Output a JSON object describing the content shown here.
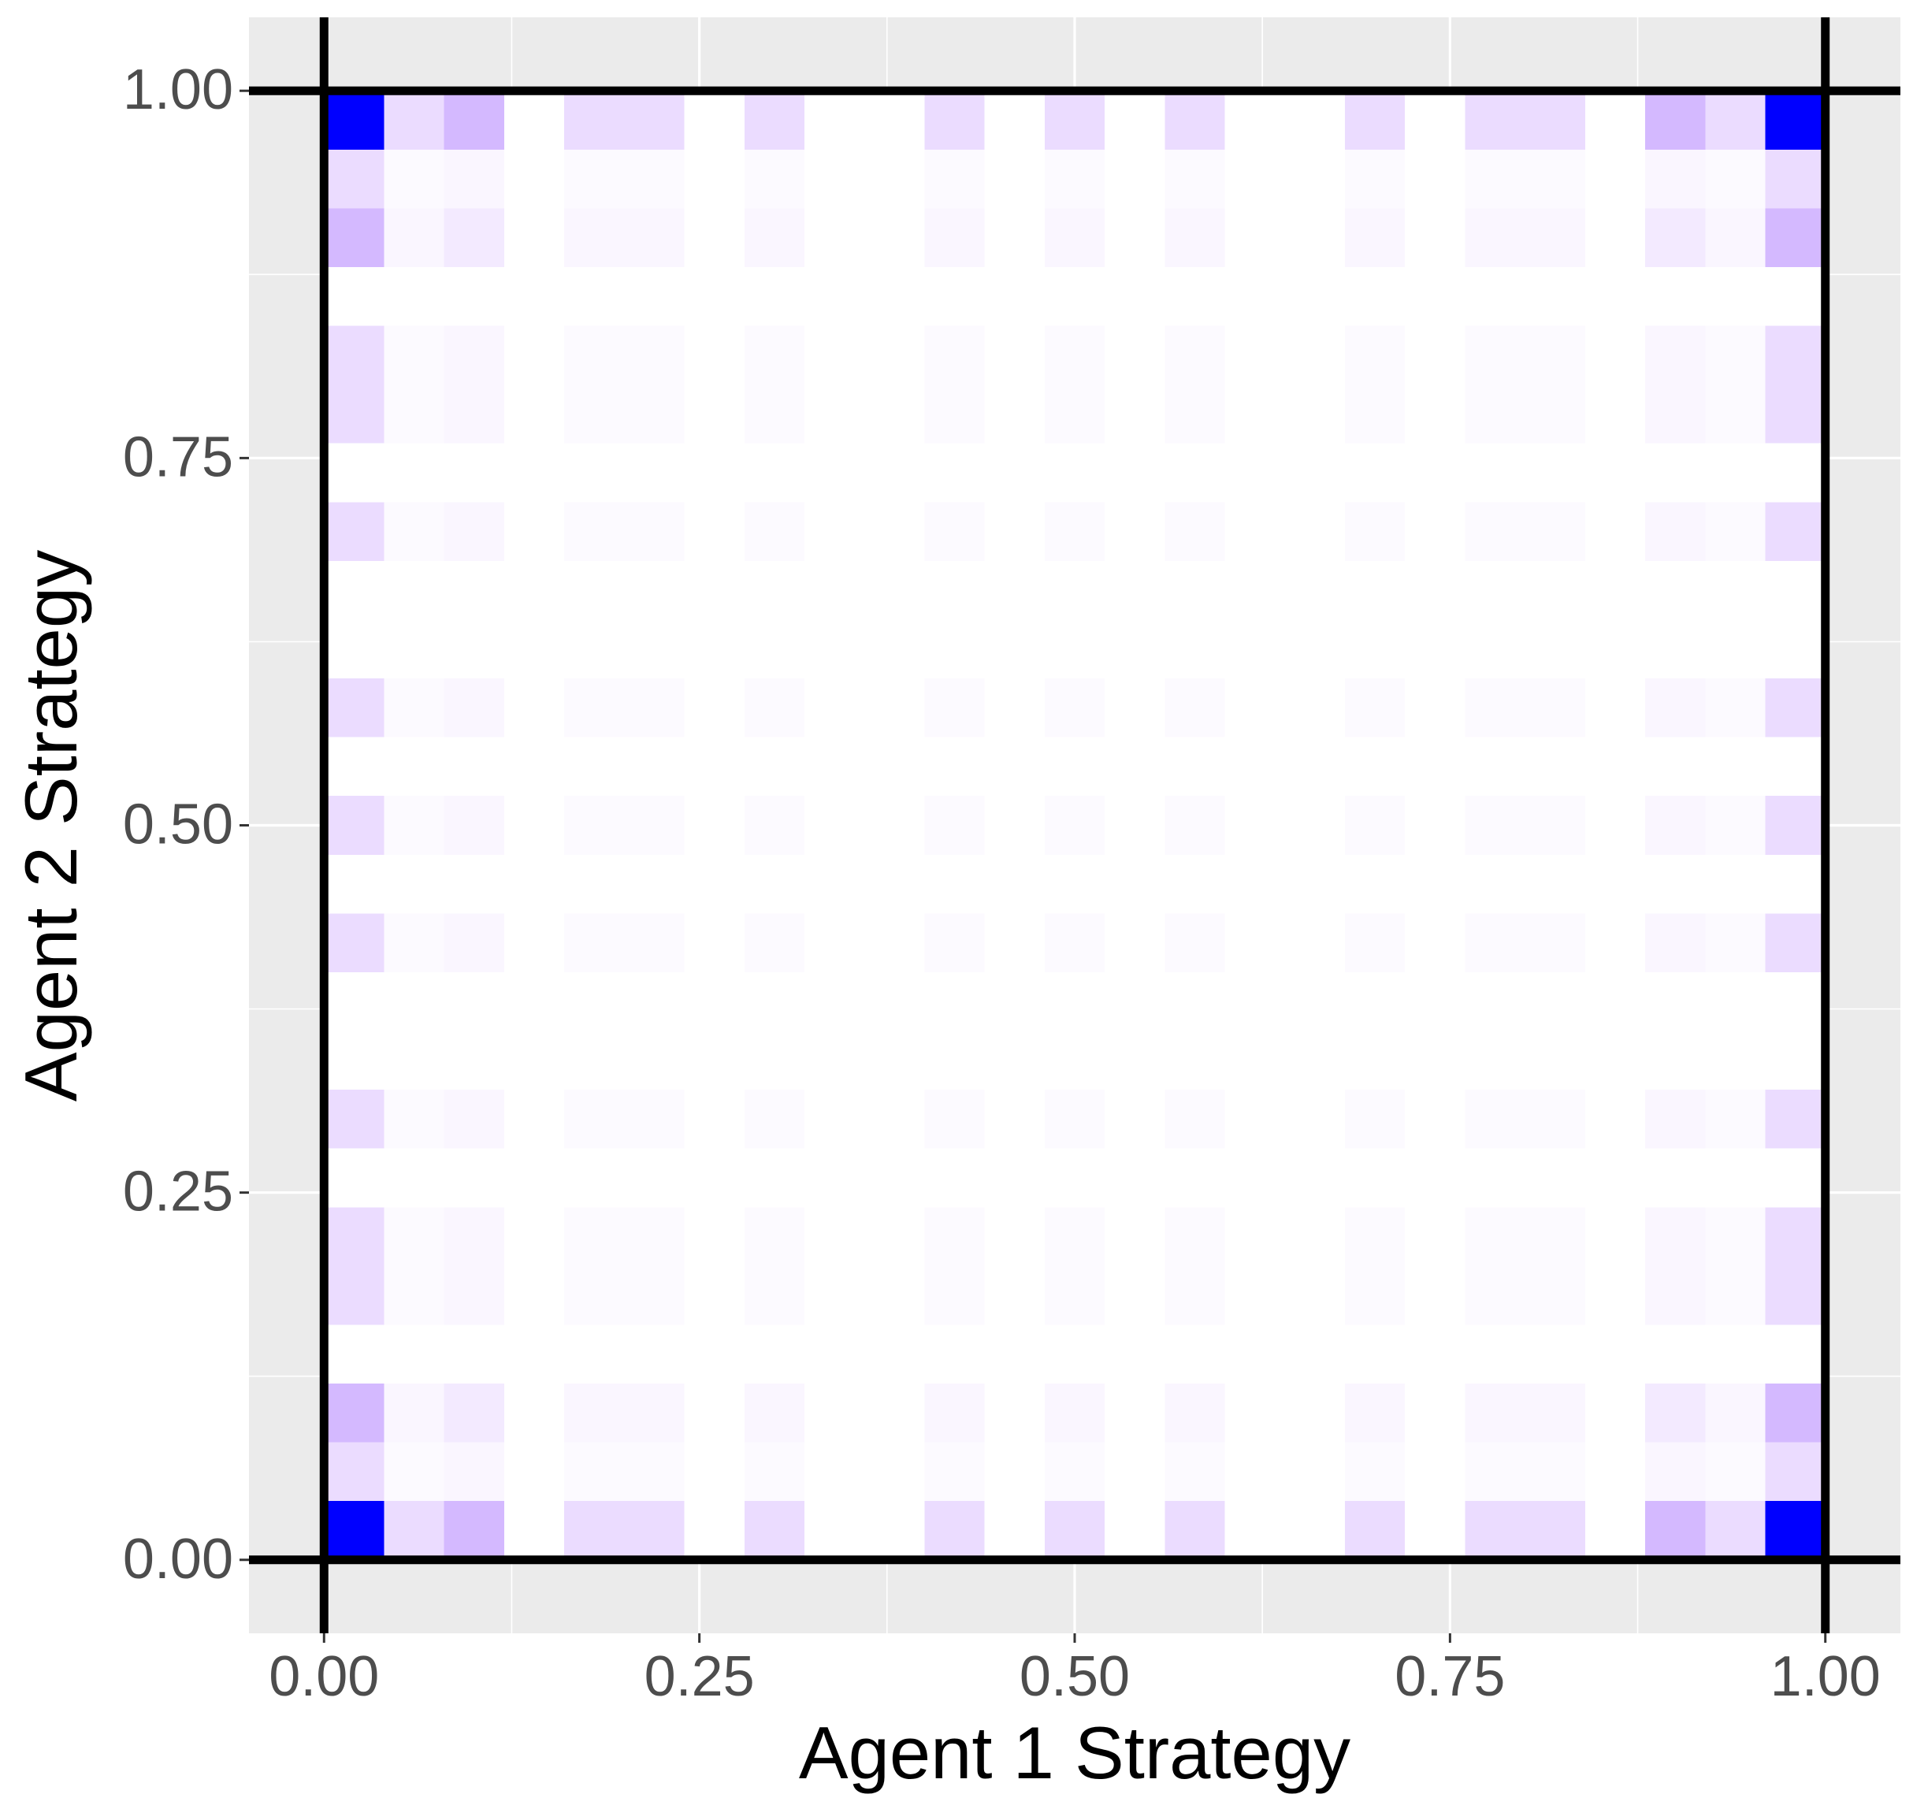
{
  "chart_data": {
    "type": "heatmap",
    "x_label": "Agent 1 Strategy",
    "y_label": "Agent 2 Strategy",
    "xbins": [
      0,
      0.04,
      0.08,
      0.12,
      0.16,
      0.2,
      0.24,
      0.28,
      0.32,
      0.36,
      0.4,
      0.44,
      0.48,
      0.52,
      0.56,
      0.6,
      0.64,
      0.68,
      0.72,
      0.76,
      0.8,
      0.84,
      0.88,
      0.92,
      0.96,
      1
    ],
    "ybins": [
      0,
      0.04,
      0.08,
      0.12,
      0.16,
      0.2,
      0.24,
      0.28,
      0.32,
      0.36,
      0.4,
      0.44,
      0.48,
      0.52,
      0.56,
      0.6,
      0.64,
      0.68,
      0.72,
      0.76,
      0.8,
      0.84,
      0.88,
      0.92,
      0.96,
      1
    ],
    "values": [
      [
        100,
        15,
        30,
        0,
        15,
        15,
        0,
        15,
        0,
        0,
        15,
        0,
        15,
        0,
        15,
        0,
        0,
        15,
        0,
        15,
        15,
        0,
        30,
        15,
        100
      ],
      [
        15,
        2,
        4,
        0,
        2,
        2,
        0,
        2,
        0,
        0,
        2,
        0,
        2,
        0,
        2,
        0,
        0,
        2,
        0,
        2,
        2,
        0,
        4,
        2,
        15
      ],
      [
        30,
        4,
        9,
        0,
        4,
        4,
        0,
        4,
        0,
        0,
        4,
        0,
        4,
        0,
        4,
        0,
        0,
        4,
        0,
        4,
        4,
        0,
        9,
        4,
        30
      ],
      [
        0,
        0,
        0,
        0,
        0,
        0,
        0,
        0,
        0,
        0,
        0,
        0,
        0,
        0,
        0,
        0,
        0,
        0,
        0,
        0,
        0,
        0,
        0,
        0,
        0
      ],
      [
        15,
        2,
        4,
        0,
        2,
        2,
        0,
        2,
        0,
        0,
        2,
        0,
        2,
        0,
        2,
        0,
        0,
        2,
        0,
        2,
        2,
        0,
        4,
        2,
        15
      ],
      [
        15,
        2,
        4,
        0,
        2,
        2,
        0,
        2,
        0,
        0,
        2,
        0,
        2,
        0,
        2,
        0,
        0,
        2,
        0,
        2,
        2,
        0,
        4,
        2,
        15
      ],
      [
        0,
        0,
        0,
        0,
        0,
        0,
        0,
        0,
        0,
        0,
        0,
        0,
        0,
        0,
        0,
        0,
        0,
        0,
        0,
        0,
        0,
        0,
        0,
        0,
        0
      ],
      [
        15,
        2,
        4,
        0,
        2,
        2,
        0,
        2,
        0,
        0,
        2,
        0,
        2,
        0,
        2,
        0,
        0,
        2,
        0,
        2,
        2,
        0,
        4,
        2,
        15
      ],
      [
        0,
        0,
        0,
        0,
        0,
        0,
        0,
        0,
        0,
        0,
        0,
        0,
        0,
        0,
        0,
        0,
        0,
        0,
        0,
        0,
        0,
        0,
        0,
        0,
        0
      ],
      [
        0,
        0,
        0,
        0,
        0,
        0,
        0,
        0,
        0,
        0,
        0,
        0,
        0,
        0,
        0,
        0,
        0,
        0,
        0,
        0,
        0,
        0,
        0,
        0,
        0
      ],
      [
        15,
        2,
        4,
        0,
        2,
        2,
        0,
        2,
        0,
        0,
        2,
        0,
        2,
        0,
        2,
        0,
        0,
        2,
        0,
        2,
        2,
        0,
        4,
        2,
        15
      ],
      [
        0,
        0,
        0,
        0,
        0,
        0,
        0,
        0,
        0,
        0,
        0,
        0,
        0,
        0,
        0,
        0,
        0,
        0,
        0,
        0,
        0,
        0,
        0,
        0,
        0
      ],
      [
        15,
        2,
        4,
        0,
        2,
        2,
        0,
        2,
        0,
        0,
        2,
        0,
        2,
        0,
        2,
        0,
        0,
        2,
        0,
        2,
        2,
        0,
        4,
        2,
        15
      ],
      [
        0,
        0,
        0,
        0,
        0,
        0,
        0,
        0,
        0,
        0,
        0,
        0,
        0,
        0,
        0,
        0,
        0,
        0,
        0,
        0,
        0,
        0,
        0,
        0,
        0
      ],
      [
        15,
        2,
        4,
        0,
        2,
        2,
        0,
        2,
        0,
        0,
        2,
        0,
        2,
        0,
        2,
        0,
        0,
        2,
        0,
        2,
        2,
        0,
        4,
        2,
        15
      ],
      [
        0,
        0,
        0,
        0,
        0,
        0,
        0,
        0,
        0,
        0,
        0,
        0,
        0,
        0,
        0,
        0,
        0,
        0,
        0,
        0,
        0,
        0,
        0,
        0,
        0
      ],
      [
        0,
        0,
        0,
        0,
        0,
        0,
        0,
        0,
        0,
        0,
        0,
        0,
        0,
        0,
        0,
        0,
        0,
        0,
        0,
        0,
        0,
        0,
        0,
        0,
        0
      ],
      [
        15,
        2,
        4,
        0,
        2,
        2,
        0,
        2,
        0,
        0,
        2,
        0,
        2,
        0,
        2,
        0,
        0,
        2,
        0,
        2,
        2,
        0,
        4,
        2,
        15
      ],
      [
        0,
        0,
        0,
        0,
        0,
        0,
        0,
        0,
        0,
        0,
        0,
        0,
        0,
        0,
        0,
        0,
        0,
        0,
        0,
        0,
        0,
        0,
        0,
        0,
        0
      ],
      [
        15,
        2,
        4,
        0,
        2,
        2,
        0,
        2,
        0,
        0,
        2,
        0,
        2,
        0,
        2,
        0,
        0,
        2,
        0,
        2,
        2,
        0,
        4,
        2,
        15
      ],
      [
        15,
        2,
        4,
        0,
        2,
        2,
        0,
        2,
        0,
        0,
        2,
        0,
        2,
        0,
        2,
        0,
        0,
        2,
        0,
        2,
        2,
        0,
        4,
        2,
        15
      ],
      [
        0,
        0,
        0,
        0,
        0,
        0,
        0,
        0,
        0,
        0,
        0,
        0,
        0,
        0,
        0,
        0,
        0,
        0,
        0,
        0,
        0,
        0,
        0,
        0,
        0
      ],
      [
        30,
        4,
        9,
        0,
        4,
        4,
        0,
        4,
        0,
        0,
        4,
        0,
        4,
        0,
        4,
        0,
        0,
        4,
        0,
        4,
        4,
        0,
        9,
        4,
        30
      ],
      [
        15,
        2,
        4,
        0,
        2,
        2,
        0,
        2,
        0,
        0,
        2,
        0,
        2,
        0,
        2,
        0,
        0,
        2,
        0,
        2,
        2,
        0,
        4,
        2,
        15
      ],
      [
        100,
        15,
        30,
        0,
        15,
        15,
        0,
        15,
        0,
        0,
        15,
        0,
        15,
        0,
        15,
        0,
        0,
        15,
        0,
        15,
        15,
        0,
        30,
        15,
        100
      ]
    ],
    "color_low": "#ffffff",
    "color_high": "#0000ff",
    "xlim": [
      -0.05,
      1.05
    ],
    "ylim": [
      -0.05,
      1.05
    ],
    "xticks": [
      {
        "value": 0,
        "label": "0.00"
      },
      {
        "value": 0.25,
        "label": "0.25"
      },
      {
        "value": 0.5,
        "label": "0.50"
      },
      {
        "value": 0.75,
        "label": "0.75"
      },
      {
        "value": 1,
        "label": "1.00"
      }
    ],
    "yticks": [
      {
        "value": 0,
        "label": "0.00"
      },
      {
        "value": 0.25,
        "label": "0.25"
      },
      {
        "value": 0.5,
        "label": "0.50"
      },
      {
        "value": 0.75,
        "label": "0.75"
      },
      {
        "value": 1,
        "label": "1.00"
      }
    ],
    "xminor": [
      0.125,
      0.375,
      0.625,
      0.875
    ],
    "yminor": [
      0.125,
      0.375,
      0.625,
      0.875
    ],
    "vlines": [
      0,
      1
    ],
    "hlines": [
      0,
      1
    ],
    "grid": true
  }
}
